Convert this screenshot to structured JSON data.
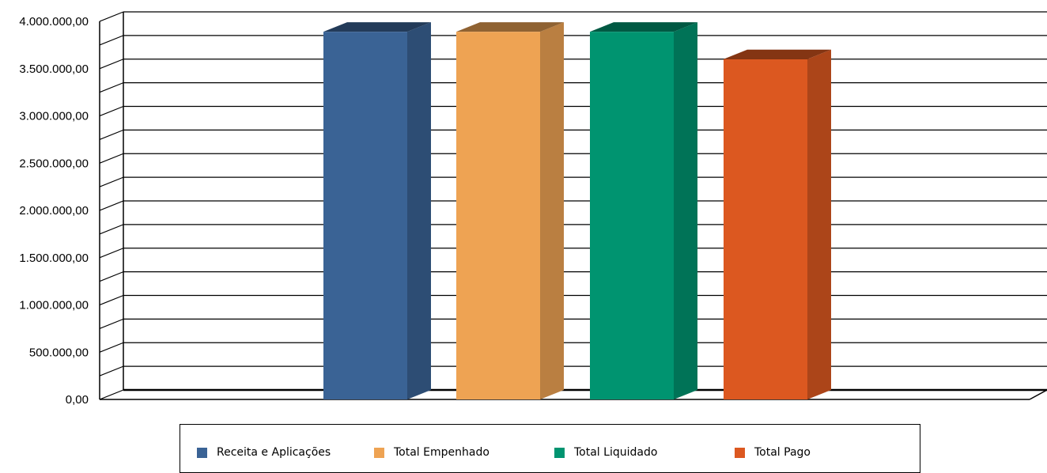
{
  "chart_data": {
    "type": "bar",
    "title": "",
    "xlabel": "",
    "ylabel": "",
    "ylim": [
      0,
      4000000
    ],
    "y_tick_labels": [
      "0,00",
      "500.000,00",
      "1.000.000,00",
      "1.500.000,00",
      "2.000.000,00",
      "2.500.000,00",
      "3.000.000,00",
      "3.500.000,00",
      "4.000.000,00"
    ],
    "grid": true,
    "three_d": true,
    "legend_position": "bottom",
    "series": [
      {
        "name": "Receita e Aplicações",
        "value": 3890000,
        "color": "#3a6395"
      },
      {
        "name": "Total Empenhado",
        "value": 3890000,
        "color": "#eea353"
      },
      {
        "name": "Total Liquidado",
        "value": 3890000,
        "color": "#009470"
      },
      {
        "name": "Total Pago",
        "value": 3600000,
        "color": "#dc5820"
      }
    ]
  }
}
